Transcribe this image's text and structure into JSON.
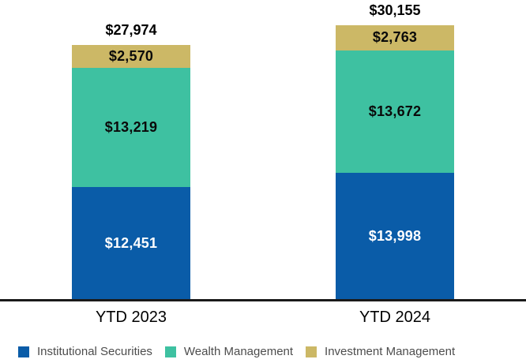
{
  "chart_data": {
    "type": "bar",
    "stacked": true,
    "title": "",
    "xlabel": "",
    "ylabel": "",
    "grid": false,
    "legend_position": "bottom",
    "axis_line_color": "#1a1a1a",
    "background_color": "#ffffff",
    "categories": [
      "YTD 2023",
      "YTD 2024"
    ],
    "series": [
      {
        "name": "Institutional Securities",
        "color": "#0a5ca8",
        "label_color": "#ffffff",
        "values": [
          12451,
          13998
        ],
        "labels": [
          "$12,451",
          "$13,998"
        ]
      },
      {
        "name": "Wealth Management",
        "color": "#3ec1a1",
        "label_color": "#0a0a0a",
        "values": [
          13219,
          13672
        ],
        "labels": [
          "$13,219",
          "$13,672"
        ]
      },
      {
        "name": "Investment Management",
        "color": "#ccb866",
        "label_color": "#0a0a0a",
        "values": [
          2570,
          2763
        ],
        "labels": [
          "$2,570",
          "$2,763"
        ]
      }
    ],
    "totals": [
      27974,
      30155
    ],
    "total_labels": [
      "$27,974",
      "$30,155"
    ]
  },
  "legend": {
    "items": [
      {
        "label": "Institutional Securities",
        "color": "#0a5ca8"
      },
      {
        "label": "Wealth Management",
        "color": "#3ec1a1"
      },
      {
        "label": "Investment Management",
        "color": "#ccb866"
      }
    ]
  }
}
